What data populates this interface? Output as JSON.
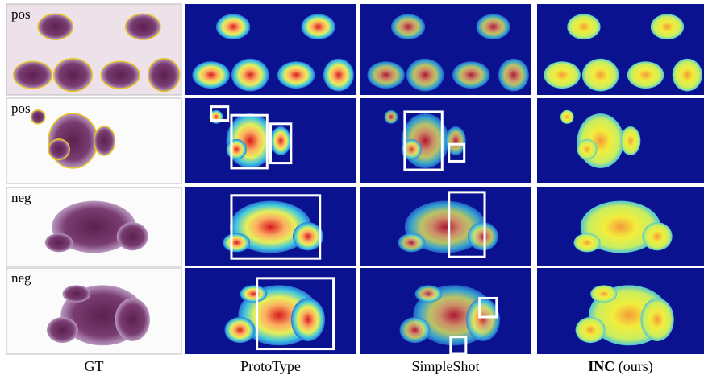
{
  "row_labels": [
    "pos",
    "pos",
    "neg",
    "neg"
  ],
  "column_labels": [
    {
      "text": "GT"
    },
    {
      "text": "ProtoType"
    },
    {
      "text": "SimpleShot"
    },
    {
      "bold": "INC",
      "text": "(ours)"
    }
  ]
}
